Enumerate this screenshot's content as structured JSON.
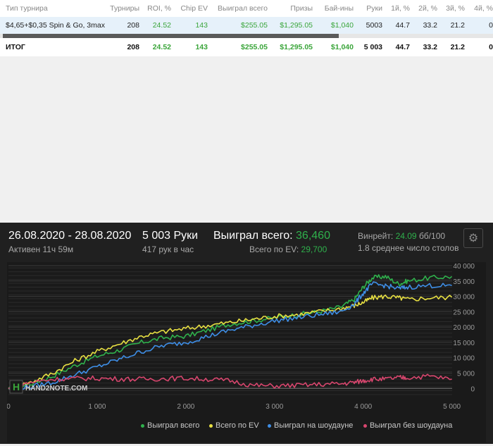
{
  "table": {
    "headers": [
      "Тип турнира",
      "Турниры",
      "ROI, %",
      "Chip EV",
      "Выиграл всего",
      "Призы",
      "Бай-ины",
      "Руки",
      "1й, %",
      "2й, %",
      "3й, %",
      "4й, %"
    ],
    "row": [
      "$4,65+$0,35 Spin & Go, 3max",
      "208",
      "24.52",
      "143",
      "$255.05",
      "$1,295.05",
      "$1,040",
      "5003",
      "44.7",
      "33.2",
      "21.2",
      "0"
    ],
    "total": [
      "ИТОГ",
      "208",
      "24.52",
      "143",
      "$255.05",
      "$1,295.05",
      "$1,040",
      "5 003",
      "44.7",
      "33.2",
      "21.2",
      "0"
    ]
  },
  "summary": {
    "date_range": "26.08.2020 - 28.08.2020",
    "active": "Активен 11ч 59м",
    "hands": "5 003 Руки",
    "hands_per_hour": "417 рук в час",
    "won_label": "Выиграл всего:",
    "won_value": "36,460",
    "ev_label": "Всего по EV:",
    "ev_value": "29,700",
    "winrate_label": "Винрейт:",
    "winrate_value": "24.09",
    "winrate_unit": "бб/100",
    "tables_avg": "1.8 среднее число столов",
    "watermark": "HAND2NOTE.COM"
  },
  "colors": {
    "green": "#2fb14c",
    "yellow": "#e8e042",
    "blue": "#3e8ee6",
    "pink": "#d8466e"
  },
  "chart_data": {
    "type": "line",
    "xlim": [
      0,
      5003
    ],
    "ylim": [
      -2000,
      40000
    ],
    "x_ticks": [
      0,
      1000,
      2000,
      3000,
      4000,
      5000
    ],
    "x_tick_labels": [
      "0",
      "1 000",
      "2 000",
      "3 000",
      "4 000",
      "5 000"
    ],
    "y_ticks": [
      0,
      5000,
      10000,
      15000,
      20000,
      25000,
      30000,
      35000,
      40000
    ],
    "y_tick_labels": [
      "0",
      "5 000",
      "10 000",
      "15 000",
      "20 000",
      "25 000",
      "30 000",
      "35 000",
      "40 000"
    ],
    "grid": true,
    "legend_position": "bottom-right",
    "x": [
      0,
      250,
      500,
      750,
      1000,
      1250,
      1500,
      1750,
      2000,
      2250,
      2500,
      2750,
      3000,
      3250,
      3500,
      3750,
      3900,
      4000,
      4100,
      4250,
      4400,
      4500,
      4750,
      5000
    ],
    "series": [
      {
        "name": "Выиграл всего",
        "color": "#2fb14c",
        "values": [
          0,
          1500,
          4000,
          7500,
          10500,
          12500,
          15000,
          16500,
          17000,
          19000,
          21000,
          22000,
          23000,
          24000,
          25000,
          26500,
          29000,
          33000,
          36000,
          36500,
          34000,
          35000,
          36000,
          36460
        ]
      },
      {
        "name": "Всего по EV",
        "color": "#e8e042",
        "values": [
          0,
          2000,
          5000,
          9000,
          12000,
          14500,
          17000,
          18500,
          19500,
          20500,
          21500,
          22500,
          23500,
          24000,
          25000,
          26000,
          27000,
          28000,
          29500,
          30000,
          29500,
          29000,
          29500,
          29700
        ]
      },
      {
        "name": "Выиграл на шоудауне",
        "color": "#3e8ee6",
        "values": [
          0,
          500,
          2000,
          4500,
          7000,
          9500,
          12000,
          14000,
          15000,
          17000,
          19000,
          20500,
          22000,
          23000,
          24000,
          25000,
          27500,
          31000,
          34000,
          33500,
          32500,
          33000,
          33500,
          33500
        ]
      },
      {
        "name": "Выиграл без шоудауна",
        "color": "#d8466e",
        "values": [
          0,
          2000,
          3000,
          3200,
          3300,
          3100,
          3000,
          3200,
          3300,
          3000,
          2500,
          1000,
          800,
          1000,
          1300,
          1500,
          2000,
          2500,
          3000,
          3000,
          3500,
          3500,
          4000,
          3000
        ]
      }
    ]
  }
}
